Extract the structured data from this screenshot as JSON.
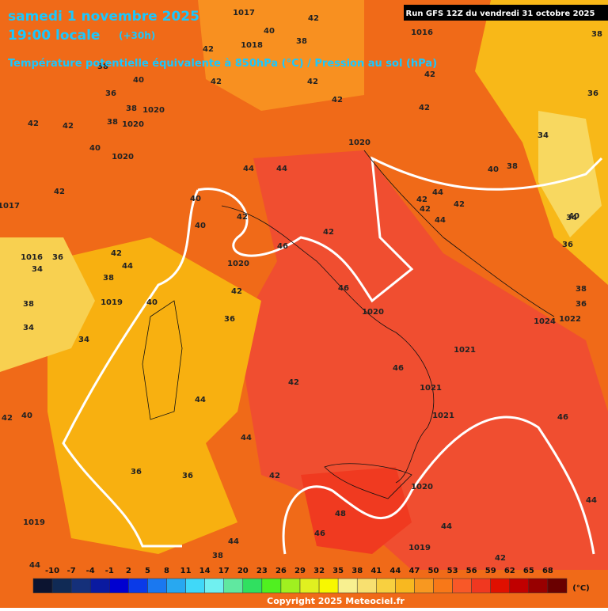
{
  "header": {
    "date": "samedi 1 novembre 2025",
    "time": "19:00 locale",
    "offset": "(+30h)",
    "subtitle": "Température potentielle équivalente à 850hPa (°C) / Pression au sol (hPa)",
    "run": "Run GFS 12Z du vendredi 31 octobre 2025"
  },
  "legend": {
    "ticks": [
      "-10",
      "-7",
      "-4",
      "-1",
      "2",
      "5",
      "8",
      "11",
      "14",
      "17",
      "20",
      "23",
      "26",
      "29",
      "32",
      "35",
      "38",
      "41",
      "44",
      "47",
      "50",
      "53",
      "56",
      "59",
      "62",
      "65",
      "68"
    ],
    "colors": [
      "#0c1430",
      "#102a55",
      "#15307a",
      "#0a1aa0",
      "#0000d0",
      "#0a3ae8",
      "#1a78f0",
      "#28a8f0",
      "#40d8f8",
      "#70f0f0",
      "#60e8a0",
      "#30e060",
      "#50f020",
      "#a0f020",
      "#e0f020",
      "#f8f800",
      "#f8f090",
      "#f8e070",
      "#f8d040",
      "#f8b820",
      "#f89820",
      "#f87818",
      "#f85828",
      "#f03820",
      "#e01000",
      "#c00000",
      "#980000",
      "#6a0000"
    ],
    "unit": "(°C)"
  },
  "labels": [
    "1017",
    "42",
    "40",
    "38",
    "1016",
    "38",
    "1018",
    "42",
    "38",
    "42",
    "42",
    "42",
    "40",
    "1020",
    "36",
    "38",
    "1020",
    "42",
    "42",
    "38",
    "40",
    "1020",
    "42",
    "42",
    "44",
    "44",
    "1020",
    "40",
    "38",
    "36",
    "42",
    "44",
    "42",
    "42",
    "42",
    "34",
    "40",
    "42",
    "44",
    "40",
    "1017",
    "40",
    "34",
    "42",
    "36",
    "1016",
    "34",
    "42",
    "44",
    "46",
    "36",
    "1020",
    "38",
    "42",
    "46",
    "1019",
    "40",
    "38",
    "38",
    "36",
    "34",
    "34",
    "36",
    "1024",
    "1022",
    "46",
    "1020",
    "1021",
    "1021",
    "42",
    "1021",
    "44",
    "46",
    "42",
    "44",
    "40",
    "36",
    "36",
    "42",
    "1020",
    "44",
    "48",
    "46",
    "44",
    "1019",
    "1019",
    "38",
    "44",
    "42",
    "44"
  ],
  "copyright": "Copyright 2025 Meteociel.fr"
}
